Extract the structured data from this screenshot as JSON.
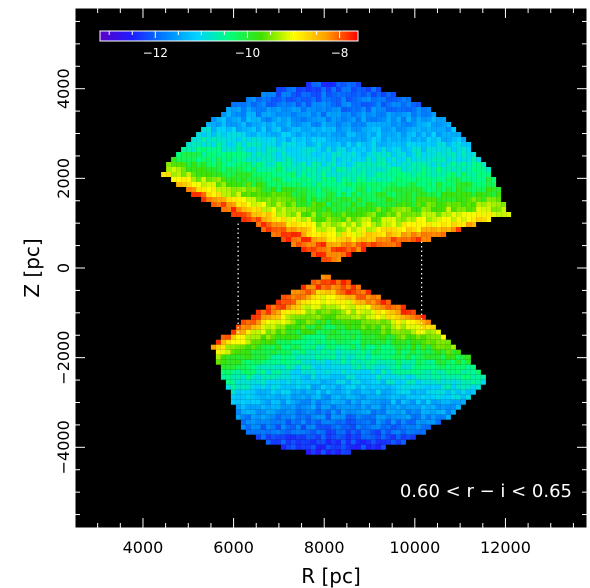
{
  "chart_data": {
    "type": "heatmap",
    "annotation": "0.60 < r − i < 0.65",
    "xlabel": "R [pc]",
    "ylabel": "Z [pc]",
    "xlim": [
      2500,
      13800
    ],
    "ylim": [
      -5800,
      5800
    ],
    "x_ticks": [
      4000,
      6000,
      8000,
      10000,
      12000
    ],
    "x_tick_labels": [
      "4000",
      "6000",
      "8000",
      "10000",
      "12000"
    ],
    "y_ticks": [
      -4000,
      -2000,
      0,
      2000,
      4000
    ],
    "y_tick_labels": [
      "−4000",
      "−2000",
      "0",
      "2000",
      "4000"
    ],
    "background": "#000000",
    "colorbar": {
      "range": [
        -13.2,
        -7.6
      ],
      "ticks": [
        -12,
        -10,
        -8
      ],
      "tick_labels": [
        "−12",
        "−10",
        "−8"
      ],
      "colors": [
        "#5a00c8",
        "#1e1eff",
        "#0080ff",
        "#00d2ff",
        "#00ff80",
        "#40e000",
        "#ffff00",
        "#ffa000",
        "#ff0000"
      ]
    },
    "regions": [
      {
        "name": "north",
        "boundary": [
          [
            4400,
            2100
          ],
          [
            4700,
            2550
          ],
          [
            5400,
            3200
          ],
          [
            6000,
            3650
          ],
          [
            7000,
            4000
          ],
          [
            8000,
            4150
          ],
          [
            9000,
            4080
          ],
          [
            10000,
            3750
          ],
          [
            10800,
            3200
          ],
          [
            11600,
            2300
          ],
          [
            12100,
            1200
          ],
          [
            10200,
            600
          ],
          [
            8800,
            400
          ],
          [
            8300,
            150
          ],
          [
            8000,
            150
          ],
          [
            7400,
            450
          ],
          [
            6400,
            1000
          ],
          [
            5200,
            1550
          ]
        ],
        "ridge": [
          [
            4400,
            2000
          ],
          [
            8200,
            450
          ],
          [
            11600,
            950
          ]
        ],
        "ridge_value": -8.0,
        "edge_value": -12.2
      },
      {
        "name": "south",
        "boundary": [
          [
            8000,
            -150
          ],
          [
            8500,
            -300
          ],
          [
            9200,
            -600
          ],
          [
            10200,
            -1100
          ],
          [
            11200,
            -2000
          ],
          [
            11600,
            -2500
          ],
          [
            10800,
            -3300
          ],
          [
            9800,
            -3900
          ],
          [
            8800,
            -4100
          ],
          [
            7800,
            -4150
          ],
          [
            6800,
            -3950
          ],
          [
            6200,
            -3600
          ],
          [
            5500,
            -1700
          ],
          [
            6300,
            -1150
          ],
          [
            7200,
            -550
          ]
        ],
        "ridge": [
          [
            5500,
            -1750
          ],
          [
            8000,
            -400
          ],
          [
            10800,
            -1350
          ]
        ],
        "ridge_value": -8.0,
        "edge_value": -12.4
      }
    ],
    "reference_lines": [
      {
        "x": 6100,
        "y_from": -1450,
        "y_to": 1050
      },
      {
        "x": 10150,
        "y_from": -1450,
        "y_to": 650
      }
    ]
  }
}
